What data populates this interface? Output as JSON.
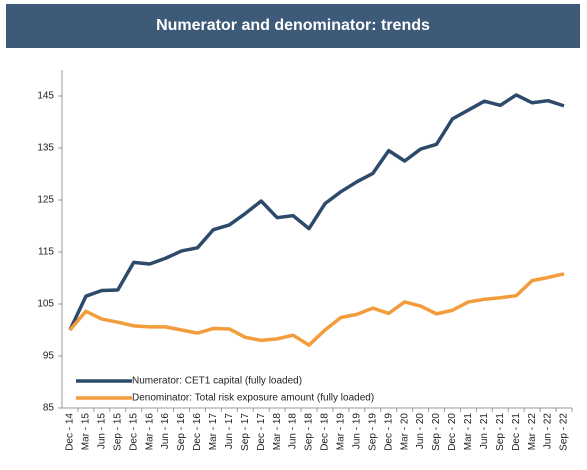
{
  "chart_data": {
    "type": "line",
    "title": "Numerator and denominator: trends",
    "categories": [
      "Dec - 14",
      "Mar - 15",
      "Jun - 15",
      "Sep - 15",
      "Dec - 15",
      "Mar - 16",
      "Jun - 16",
      "Sep - 16",
      "Dec - 16",
      "Mar - 17",
      "Jun - 17",
      "Sep - 17",
      "Dec - 17",
      "Mar - 18",
      "Jun - 18",
      "Sep - 18",
      "Dec - 18",
      "Mar - 19",
      "Jun - 19",
      "Sep - 19",
      "Dec - 19",
      "Mar - 20",
      "Jun - 20",
      "Sep - 20",
      "Dec - 20",
      "Mar - 21",
      "Jun - 21",
      "Sep - 21",
      "Dec - 21",
      "Mar - 22",
      "Jun - 22",
      "Sep - 22"
    ],
    "series": [
      {
        "name": "Numerator: CET1 capital (fully loaded)",
        "color": "#2e4a6b",
        "values": [
          100,
          106.5,
          107.6,
          107.7,
          113,
          112.7,
          113.8,
          115.2,
          115.8,
          119.3,
          120.2,
          122.4,
          124.8,
          121.6,
          122,
          119.5,
          124.3,
          126.6,
          128.5,
          130.1,
          134.5,
          132.5,
          134.8,
          135.7,
          140.6,
          142.3,
          144,
          143.2,
          145.2,
          143.7,
          144.1,
          143.1
        ]
      },
      {
        "name": "Denominator: Total risk exposure amount (fully loaded)",
        "color": "#f39c3c",
        "values": [
          100,
          103.6,
          102.1,
          101.5,
          100.8,
          100.6,
          100.6,
          100,
          99.4,
          100.3,
          100.2,
          98.6,
          98,
          98.3,
          99,
          97.1,
          100,
          102.4,
          103,
          104.2,
          103.2,
          105.4,
          104.6,
          103.1,
          103.8,
          105.4,
          105.9,
          106.2,
          106.6,
          109.5,
          110.1,
          110.8
        ]
      }
    ],
    "ylim": [
      85,
      150
    ],
    "yticks": [
      85,
      95,
      105,
      115,
      125,
      135,
      145
    ],
    "grid": false,
    "legend": "bottom-left",
    "header_color": "#3d5a78"
  }
}
